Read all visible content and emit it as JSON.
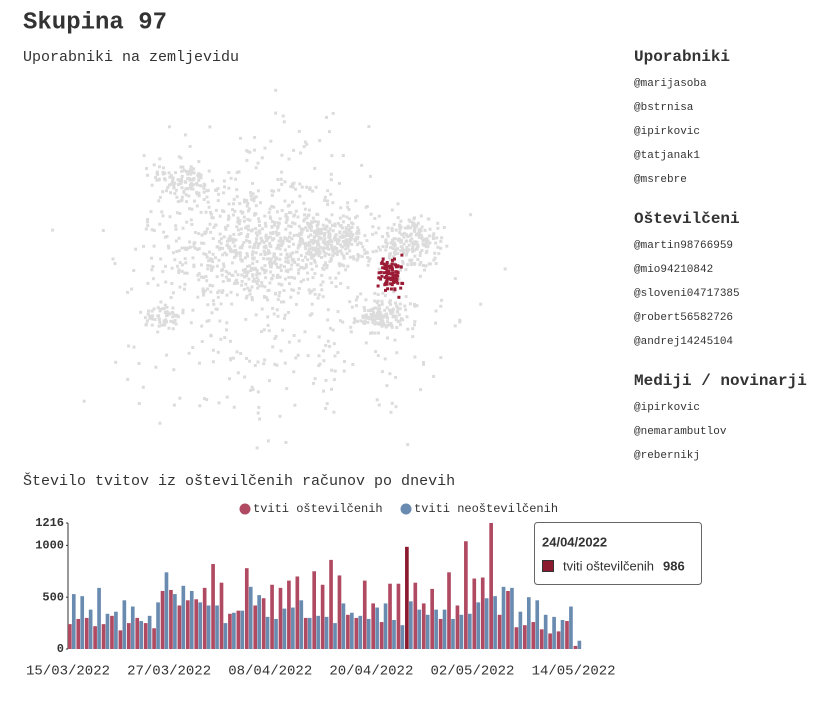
{
  "header": {
    "title": "Skupina 97"
  },
  "map": {
    "title": "Uporabniki na zemljevidu"
  },
  "sidebar": [
    {
      "title": "Uporabniki",
      "items": [
        "@marijasoba",
        "@bstrnisa",
        "@ipirkovic",
        "@tatjanak1",
        "@msrebre"
      ]
    },
    {
      "title": "Oštevilčeni",
      "items": [
        "@martin98766959",
        "@mio94210842",
        "@sloveni04717385",
        "@robert56582726",
        "@andrej14245104"
      ]
    },
    {
      "title": "Mediji / novinarji",
      "items": [
        "@ipirkovic",
        "@nemarambutlov",
        "@rebernikj"
      ]
    }
  ],
  "chart_data": {
    "type": "bar",
    "title": "Število tvitov iz oštevilčenih računov po dnevih",
    "categories": [
      "15/03/2022",
      "16/03/2022",
      "17/03/2022",
      "18/03/2022",
      "19/03/2022",
      "20/03/2022",
      "21/03/2022",
      "22/03/2022",
      "23/03/2022",
      "24/03/2022",
      "25/03/2022",
      "26/03/2022",
      "27/03/2022",
      "28/03/2022",
      "29/03/2022",
      "30/03/2022",
      "31/03/2022",
      "01/04/2022",
      "02/04/2022",
      "03/04/2022",
      "04/04/2022",
      "05/04/2022",
      "06/04/2022",
      "07/04/2022",
      "08/04/2022",
      "09/04/2022",
      "10/04/2022",
      "11/04/2022",
      "12/04/2022",
      "13/04/2022",
      "14/04/2022",
      "15/04/2022",
      "16/04/2022",
      "17/04/2022",
      "18/04/2022",
      "19/04/2022",
      "20/04/2022",
      "21/04/2022",
      "22/04/2022",
      "23/04/2022",
      "24/04/2022",
      "25/04/2022",
      "26/04/2022",
      "27/04/2022",
      "28/04/2022",
      "29/04/2022",
      "30/04/2022",
      "01/05/2022",
      "02/05/2022",
      "03/05/2022",
      "04/05/2022",
      "05/05/2022",
      "06/05/2022",
      "07/05/2022",
      "08/05/2022",
      "09/05/2022",
      "10/05/2022",
      "11/05/2022",
      "12/05/2022",
      "13/05/2022",
      "14/05/2022"
    ],
    "series": [
      {
        "name": "tviti oštevilčenih",
        "color": "#b04a62",
        "values": [
          240,
          290,
          300,
          220,
          240,
          320,
          180,
          250,
          300,
          250,
          200,
          560,
          570,
          420,
          470,
          480,
          590,
          820,
          640,
          340,
          370,
          780,
          420,
          490,
          620,
          590,
          660,
          700,
          300,
          750,
          620,
          860,
          710,
          330,
          300,
          660,
          440,
          260,
          630,
          630,
          986,
          640,
          440,
          580,
          290,
          740,
          420,
          1040,
          680,
          690,
          1216,
          330,
          560,
          210,
          230,
          260,
          190,
          150,
          170,
          270,
          30
        ]
      },
      {
        "name": "tviti neoštevilčenih",
        "color": "#6a8bb0",
        "values": [
          530,
          510,
          380,
          590,
          340,
          360,
          470,
          410,
          270,
          320,
          450,
          740,
          530,
          610,
          560,
          450,
          420,
          420,
          250,
          350,
          370,
          600,
          520,
          310,
          290,
          390,
          400,
          470,
          300,
          320,
          310,
          250,
          440,
          350,
          320,
          290,
          400,
          440,
          280,
          230,
          460,
          380,
          330,
          380,
          380,
          290,
          330,
          340,
          450,
          490,
          510,
          600,
          590,
          360,
          500,
          470,
          330,
          310,
          280,
          410,
          80
        ]
      }
    ],
    "ylim": [
      0,
      1216
    ],
    "yticks": [
      0,
      500,
      1000,
      1216
    ],
    "highlight_color": "#8b1a2e",
    "tooltip_index": 40
  }
}
